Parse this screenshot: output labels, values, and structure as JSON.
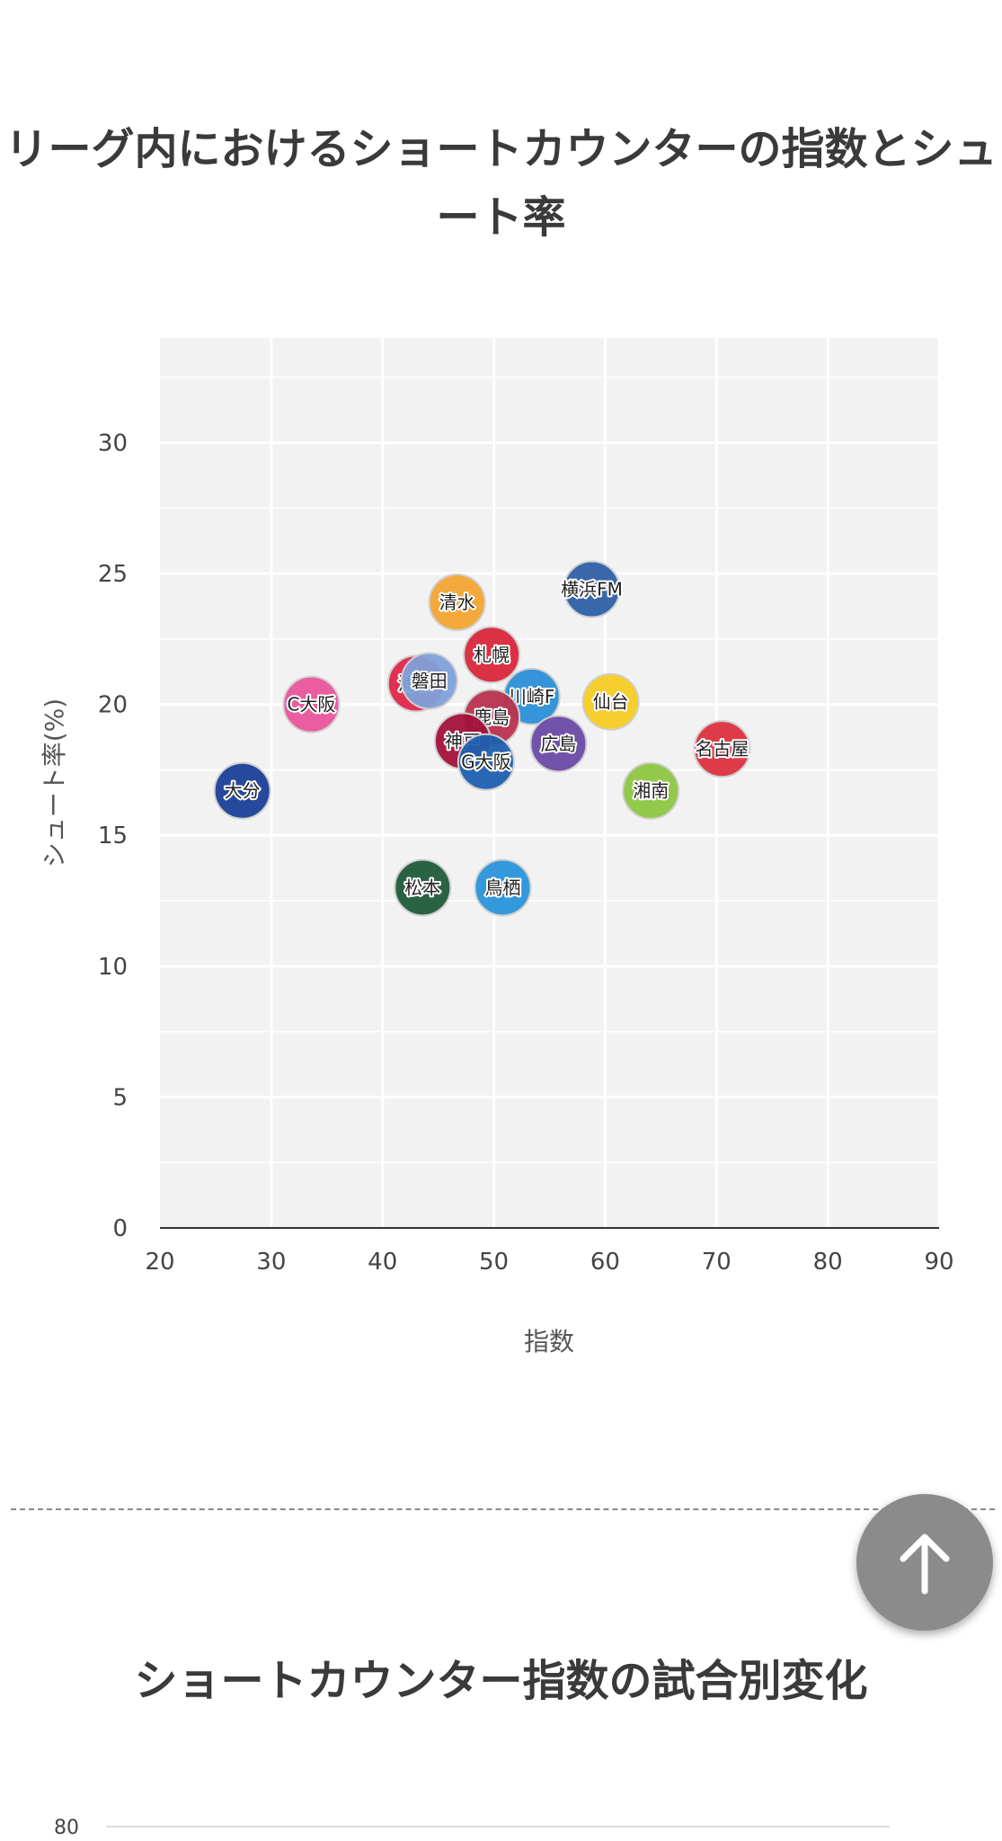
{
  "page": {
    "title": "リーグ内におけるショートカウンターの指数とシュート率",
    "next_section_title": "ショートカウンター指数の試合別変化"
  },
  "chart_data": [
    {
      "type": "scatter",
      "title": "リーグ内におけるショートカウンターの指数とシュート率",
      "xlabel": "指数",
      "ylabel": "シュート率(%)",
      "xlim": [
        20,
        90
      ],
      "ylim": [
        0,
        34
      ],
      "x_ticks": [
        20,
        30,
        40,
        50,
        60,
        70,
        80,
        90
      ],
      "y_ticks": [
        0,
        5,
        10,
        15,
        20,
        25,
        30
      ],
      "grid": true,
      "legend": "none",
      "points": [
        {
          "label": "横浜FM",
          "x": 58.8,
          "y": 24.4,
          "color": "#2d5fa8"
        },
        {
          "label": "清水",
          "x": 46.7,
          "y": 23.9,
          "color": "#f3a431"
        },
        {
          "label": "札幌",
          "x": 49.8,
          "y": 21.9,
          "color": "#d8263a"
        },
        {
          "label": "浦和",
          "x": 43.0,
          "y": 20.8,
          "color": "#e0254a"
        },
        {
          "label": "磐田",
          "x": 44.2,
          "y": 20.9,
          "color": "#7fa0d8"
        },
        {
          "label": "C大阪",
          "x": 33.6,
          "y": 20.0,
          "color": "#e9549b"
        },
        {
          "label": "川崎F",
          "x": 53.4,
          "y": 20.3,
          "color": "#2b8fd6"
        },
        {
          "label": "仙台",
          "x": 60.5,
          "y": 20.1,
          "color": "#f5cb22"
        },
        {
          "label": "鹿島",
          "x": 49.8,
          "y": 19.5,
          "color": "#b8324e"
        },
        {
          "label": "神戸",
          "x": 47.2,
          "y": 18.6,
          "color": "#a3113a"
        },
        {
          "label": "広島",
          "x": 55.8,
          "y": 18.5,
          "color": "#6a4aa5"
        },
        {
          "label": "G大阪",
          "x": 49.3,
          "y": 17.8,
          "color": "#1e5fb0"
        },
        {
          "label": "名古屋",
          "x": 70.5,
          "y": 18.3,
          "color": "#dc303f"
        },
        {
          "label": "湘南",
          "x": 64.1,
          "y": 16.7,
          "color": "#8dc640"
        },
        {
          "label": "大分",
          "x": 27.4,
          "y": 16.7,
          "color": "#1a3f99"
        },
        {
          "label": "松本",
          "x": 43.6,
          "y": 13.0,
          "color": "#1f5a3a"
        },
        {
          "label": "鳥栖",
          "x": 50.8,
          "y": 13.0,
          "color": "#2993da"
        }
      ]
    },
    {
      "type": "line",
      "title": "ショートカウンター指数の試合別変化",
      "y_ticks": [
        80
      ]
    }
  ],
  "scroll_top": {
    "icon": "arrow-up-icon"
  }
}
